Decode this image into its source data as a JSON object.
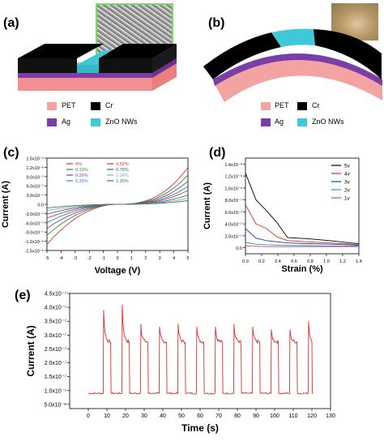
{
  "panel_labels": {
    "a": "(a)",
    "b": "(b)",
    "c": "(c)",
    "d": "(d)",
    "e": "(e)"
  },
  "legend_ab": {
    "pet": "PET",
    "cr": "Cr",
    "ag": "Ag",
    "zno": "ZnO NWs"
  },
  "colors": {
    "pet": "#f4a3a3",
    "cr": "#000000",
    "ag": "#7a3fa6",
    "zno": "#3ec8d8",
    "red": "#e0302a",
    "curve_0": "#e0302a",
    "curve_013": "#2e8b3a",
    "curve_026": "#7a3fa6",
    "curve_039": "#1f8fb8",
    "curve_052": "#e0302a",
    "curve_078": "#1a6aa0",
    "curve_104": "#9aa5a5",
    "curve_130": "#2e8b3a",
    "d_5v": "#000000",
    "d_4v": "#e0302a",
    "d_3v": "#1a3fb0",
    "d_2v": "#2e9a9a",
    "d_1v": "#d040a0"
  },
  "chart_data": [
    {
      "id": "c",
      "type": "line",
      "xlabel": "Voltage (V)",
      "ylabel": "Current (A)",
      "xlim": [
        -5,
        5
      ],
      "ylim": [
        -1.5e-06,
        1.5e-06
      ],
      "xticks": [
        "-5",
        "-4",
        "-3",
        "-2",
        "-1",
        "0",
        "1",
        "2",
        "3",
        "4",
        "5"
      ],
      "yticks": [
        "1.5x10⁻⁶",
        "1.2x10⁻⁶",
        "9.0x10⁻⁷",
        "6.0x10⁻⁷",
        "3.0x10⁻⁷",
        "0.0",
        "-3.0x10⁻⁷",
        "-6.0x10⁻⁷",
        "-9.0x10⁻⁷",
        "-1.2x10⁻⁶",
        "-1.5x10⁻⁶"
      ],
      "legend_items": [
        "0%",
        "0.13%",
        "0.26%",
        "0.39%",
        "0.52%",
        "0.78%",
        "1.04%",
        "1.30%"
      ],
      "series": [
        {
          "name": "0%",
          "peak_pos": 1.2e-06,
          "peak_neg": -1.3e-06
        },
        {
          "name": "0.13%",
          "peak_pos": 9.5e-07,
          "peak_neg": -1e-06
        },
        {
          "name": "0.26%",
          "peak_pos": 7.5e-07,
          "peak_neg": -7.8e-07
        },
        {
          "name": "0.39%",
          "peak_pos": 5.8e-07,
          "peak_neg": -6e-07
        },
        {
          "name": "0.52%",
          "peak_pos": 4.5e-07,
          "peak_neg": -4.5e-07
        },
        {
          "name": "0.78%",
          "peak_pos": 3e-07,
          "peak_neg": -3.2e-07
        },
        {
          "name": "1.04%",
          "peak_pos": 2e-07,
          "peak_neg": -2e-07
        },
        {
          "name": "1.30%",
          "peak_pos": 1.2e-07,
          "peak_neg": -1.2e-07
        }
      ]
    },
    {
      "id": "d",
      "type": "line",
      "xlabel": "Strain (%)",
      "ylabel": "Current (A)",
      "xlim": [
        0,
        1.4
      ],
      "ylim": [
        -1e-07,
        1.5e-06
      ],
      "xticks": [
        "0.0",
        "0.2",
        "0.4",
        "0.6",
        "0.8",
        "1.0",
        "1.2",
        "1.4"
      ],
      "yticks": [
        "1.4x10⁻⁶",
        "1.2x10⁻⁶",
        "1.0x10⁻⁶",
        "8.0x10⁻⁷",
        "6.0x10⁻⁷",
        "4.0x10⁻⁷",
        "2.0x10⁻⁷",
        "0.0"
      ],
      "x": [
        0,
        0.13,
        0.26,
        0.39,
        0.52,
        0.78,
        1.04,
        1.3,
        1.4
      ],
      "series": [
        {
          "name": "5v",
          "values": [
            1.25e-06,
            8e-07,
            6.2e-07,
            4.2e-07,
            1.7e-07,
            1.5e-07,
            1.2e-07,
            8e-08,
            7e-08
          ]
        },
        {
          "name": "4v",
          "values": [
            7.2e-07,
            4e-07,
            3.2e-07,
            1.8e-07,
            1.2e-07,
            1e-07,
            8e-08,
            6e-08,
            5e-08
          ]
        },
        {
          "name": "3v",
          "values": [
            3.2e-07,
            1.6e-07,
            1.2e-07,
            1e-07,
            8e-08,
            7e-08,
            6e-08,
            5e-08,
            4e-08
          ]
        },
        {
          "name": "2v",
          "values": [
            9e-08,
            6e-08,
            5e-08,
            4.5e-08,
            4e-08,
            3.5e-08,
            3e-08,
            3e-08,
            3e-08
          ]
        },
        {
          "name": "1v",
          "values": [
            3e-08,
            2.5e-08,
            2e-08,
            2e-08,
            2e-08,
            2e-08,
            2e-08,
            2e-08,
            2e-08
          ]
        }
      ]
    },
    {
      "id": "e",
      "type": "line",
      "xlabel": "Time (s)",
      "ylabel": "Current (A)",
      "xlim": [
        -10,
        130
      ],
      "ylim": [
        3.5e-08,
        4.5e-07
      ],
      "xticks": [
        "0",
        "10",
        "20",
        "30",
        "40",
        "50",
        "60",
        "70",
        "80",
        "90",
        "100",
        "110",
        "120",
        "130"
      ],
      "yticks": [
        "4.5x10⁻⁷",
        "4.0x10⁻⁷",
        "3.5x10⁻⁷",
        "3.0x10⁻⁷",
        "2.5x10⁻⁷",
        "2.0x10⁻⁷",
        "1.5x10⁻⁷",
        "1.0x10⁻⁷",
        "5.0x10⁻⁸"
      ],
      "baseline": 9e-08,
      "on_level": 2.75e-07,
      "pulses": [
        {
          "t_on": 8,
          "t_off": 12,
          "peak": 3.9e-07
        },
        {
          "t_on": 18,
          "t_off": 22,
          "peak": 4.1e-07
        },
        {
          "t_on": 28,
          "t_off": 32,
          "peak": 3.4e-07
        },
        {
          "t_on": 38,
          "t_off": 42,
          "peak": 3.3e-07
        },
        {
          "t_on": 48,
          "t_off": 52,
          "peak": 3.4e-07
        },
        {
          "t_on": 58,
          "t_off": 62,
          "peak": 3.3e-07
        },
        {
          "t_on": 68,
          "t_off": 72,
          "peak": 3.3e-07
        },
        {
          "t_on": 78,
          "t_off": 82,
          "peak": 3.4e-07
        },
        {
          "t_on": 88,
          "t_off": 92,
          "peak": 3.3e-07
        },
        {
          "t_on": 98,
          "t_off": 102,
          "peak": 3.2e-07
        },
        {
          "t_on": 108,
          "t_off": 112,
          "peak": 3.2e-07
        },
        {
          "t_on": 118,
          "t_off": 120,
          "peak": 3.5e-07
        }
      ]
    }
  ]
}
